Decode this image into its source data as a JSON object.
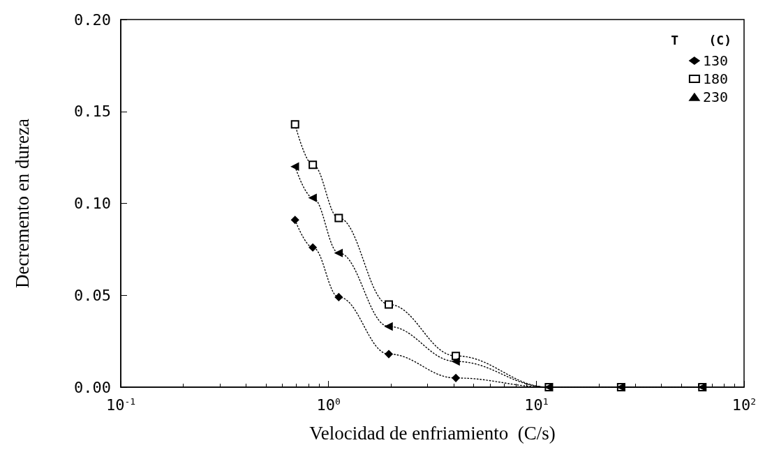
{
  "chart_data": {
    "type": "line",
    "xlabel": "Velocidad de enfriamiento  (C/s)",
    "ylabel": "Decremento en dureza",
    "legend_title": "T    (C)",
    "log": "x",
    "xlim": [
      0.1,
      100
    ],
    "xticks": [
      {
        "value": 0.1,
        "label": "10$^{-1}$"
      },
      {
        "value": 1,
        "label": "10$^{0}$"
      },
      {
        "value": 10,
        "label": "10$^{1}$"
      },
      {
        "value": 100,
        "label": "10$^{2}$"
      }
    ],
    "ylim": [
      0,
      0.2
    ],
    "yticks": [
      {
        "value": 0,
        "label": "0.00"
      },
      {
        "value": 0.05,
        "label": "0.05"
      },
      {
        "value": 0.1,
        "label": "0.10"
      },
      {
        "value": 0.15,
        "label": "0.15"
      },
      {
        "value": 0.2,
        "label": "0.20"
      }
    ],
    "grid": false,
    "legend": "top right",
    "line_style": "dotted",
    "series": [
      {
        "name": "130",
        "color": "#000000",
        "marker": "diamond",
        "x": [
          0.69,
          0.84,
          1.12,
          1.95,
          4.1,
          11.5,
          25.6,
          63
        ],
        "values": [
          0.091,
          0.076,
          0.049,
          0.018,
          0.005,
          0,
          0,
          0
        ]
      },
      {
        "name": "180",
        "color": "#000000",
        "marker": "square",
        "x": [
          0.69,
          0.84,
          1.12,
          1.95,
          4.1,
          11.5,
          25.6,
          63
        ],
        "values": [
          0.143,
          0.121,
          0.092,
          0.045,
          0.017,
          0,
          0,
          0
        ]
      },
      {
        "name": "230",
        "color": "#000000",
        "marker": "triangle",
        "x": [
          0.69,
          0.84,
          1.12,
          1.95,
          4.1,
          11.5,
          25.6,
          63
        ],
        "values": [
          0.12,
          0.103,
          0.073,
          0.033,
          0.014,
          0,
          0,
          0
        ]
      }
    ]
  }
}
